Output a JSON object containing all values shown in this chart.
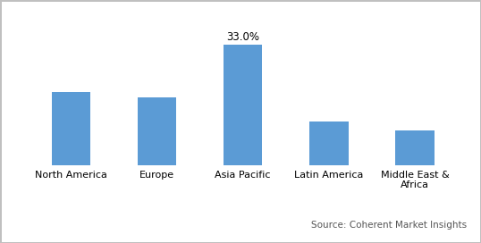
{
  "categories": [
    "North America",
    "Europe",
    "Asia Pacific",
    "Latin America",
    "Middle East &\nAfrica"
  ],
  "values": [
    20.0,
    18.5,
    33.0,
    12.0,
    9.5
  ],
  "bar_color": "#5B9BD5",
  "annotated_bar_index": 2,
  "annotation_text": "33.0%",
  "annotation_fontsize": 8.5,
  "source_text": "Source: Coherent Market Insights",
  "source_fontsize": 7.5,
  "tick_fontsize": 8,
  "background_color": "#ffffff",
  "ylim": [
    0,
    40
  ],
  "bar_width": 0.45,
  "border_color": "#c0c0c0"
}
